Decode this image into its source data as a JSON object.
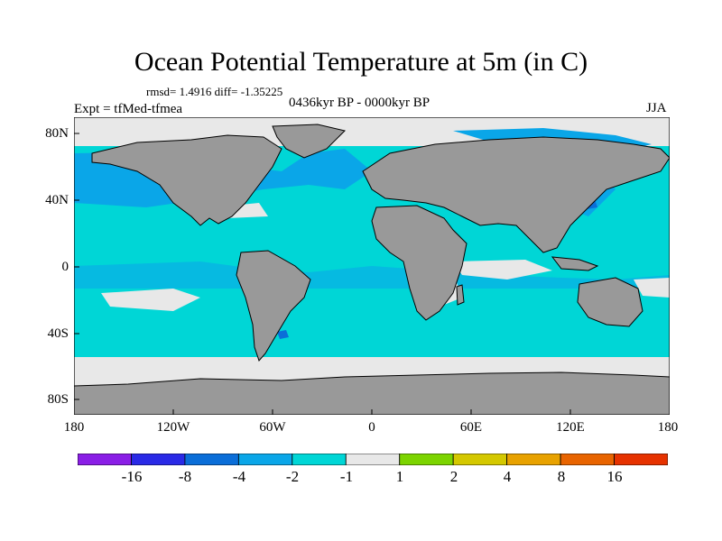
{
  "title": "Ocean Potential Temperature at 5m (in C)",
  "stats_text": "rmsd= 1.4916 diff= -1.35225",
  "expt_text": "Expt = tfMed-tfmea",
  "period_text": "0436kyr BP - 0000kyr BP",
  "season_text": "JJA",
  "lat_labels": [
    "80N",
    "40N",
    "0",
    "40S",
    "80S"
  ],
  "lon_labels": [
    "180",
    "120W",
    "60W",
    "0",
    "60E",
    "120E",
    "180"
  ],
  "colorbar": {
    "levels": [
      "-16",
      "-8",
      "-4",
      "-2",
      "-1",
      "1",
      "2",
      "4",
      "8",
      "16"
    ],
    "colors": [
      "#8a1ee6",
      "#2a2ae6",
      "#0b6ed8",
      "#0aa6e8",
      "#00d6d6",
      "#e8e8e8",
      "#7cd400",
      "#d4c800",
      "#e8a200",
      "#e86400",
      "#e63200"
    ]
  },
  "colors": {
    "land": "#999999",
    "ocean_main": "#00d6d6",
    "ocean_cool": "#0aa6e8",
    "ocean_cold": "#0b6ed8",
    "neutral": "#e8e8e8"
  }
}
